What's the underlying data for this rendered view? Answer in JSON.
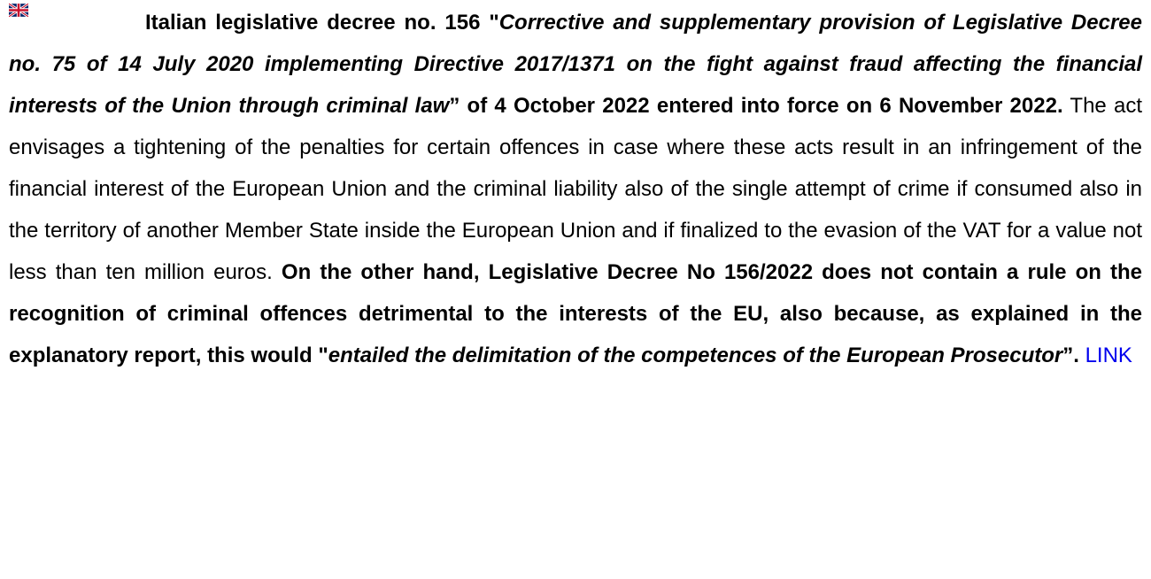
{
  "paragraph": {
    "segments": [
      {
        "text": "Italian legislative decree no. 156 \""
      },
      {
        "text": "Corrective and supplementary provision of Legislative Decree no. 75 of 14 July 2020 implementing Directive 2017/1371 on the fight against fraud affecting the financial interests of the Union through criminal law"
      },
      {
        "text": "” of 4 October 2022 entered into force on 6 November 2022."
      },
      {
        "text": " The act envisages a tightening of the penalties for certain offences in case where these acts result in an infringement of the financial interest of the European Union and the criminal liability also of the single attempt of crime if consumed also in the territory of another Member State inside the European Union and if finalized to the evasion of the VAT for a value not less than ten million euros. "
      },
      {
        "text": "On the other hand, Legislative Decree No 156/2022 does not contain a rule on the recognition of criminal offences detrimental to the interests of the EU, also because, as explained in the explanatory report, this would \""
      },
      {
        "text": "entailed the delimitation of the competences of the European Prosecutor"
      },
      {
        "text": "”. "
      },
      {
        "text": "LINK"
      }
    ]
  }
}
